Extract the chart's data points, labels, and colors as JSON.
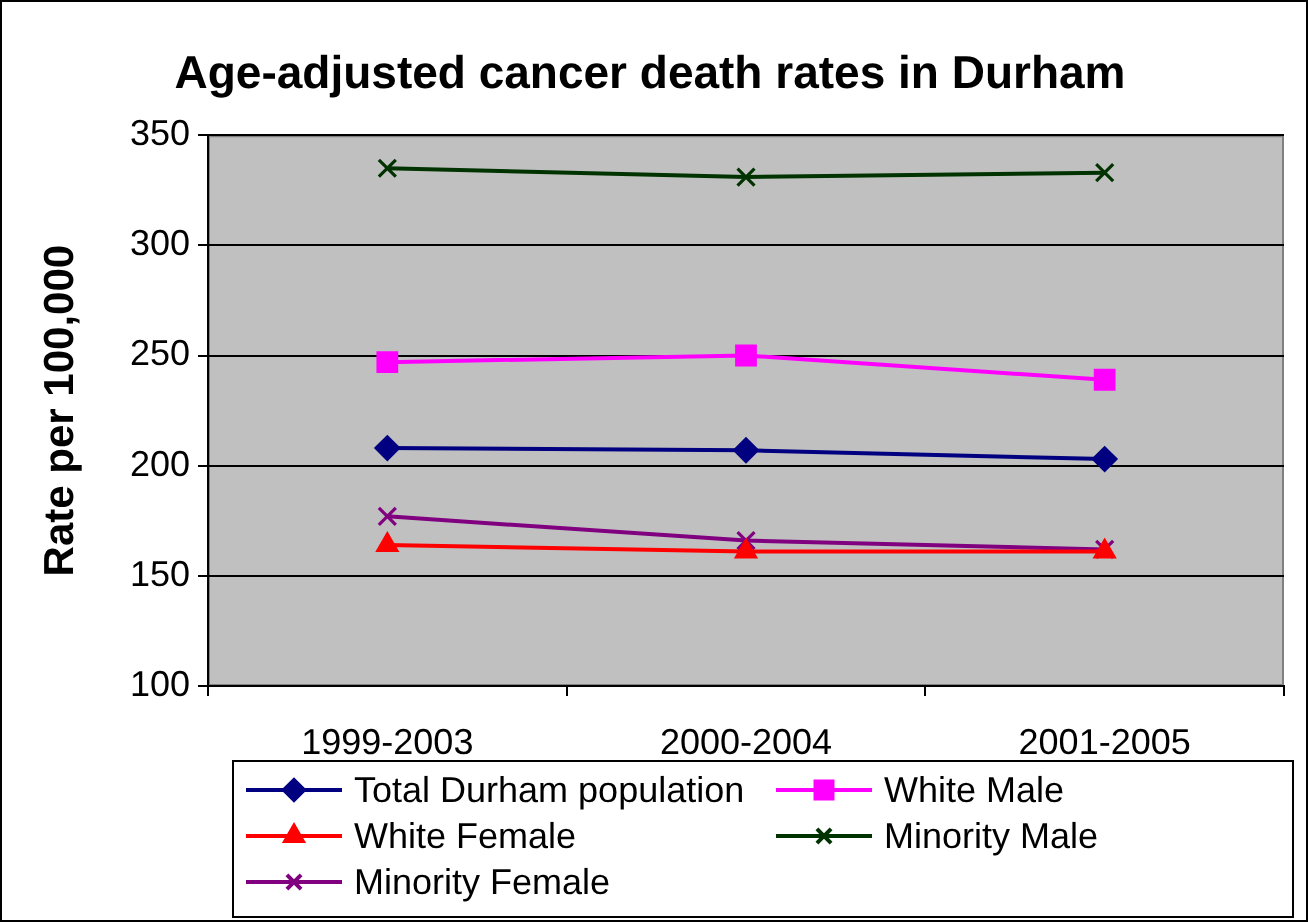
{
  "chart_data": {
    "type": "line",
    "title": "Age-adjusted cancer death rates in Durham",
    "ylabel": "Rate per 100,000",
    "categories": [
      "1999-2003",
      "2000-2004",
      "2001-2005"
    ],
    "series": [
      {
        "name": "Total Durham population",
        "color": "#000080",
        "marker": "diamond",
        "values": [
          208,
          207,
          203
        ]
      },
      {
        "name": "White Male",
        "color": "#ff00ff",
        "marker": "square",
        "values": [
          247,
          250,
          239
        ]
      },
      {
        "name": "White Female",
        "color": "#ff0000",
        "marker": "triangle",
        "values": [
          164,
          161,
          161
        ]
      },
      {
        "name": "Minority Male",
        "color": "#003300",
        "marker": "cross",
        "values": [
          335,
          331,
          333
        ]
      },
      {
        "name": "Minority Female",
        "color": "#800080",
        "marker": "cross",
        "values": [
          177,
          166,
          162
        ]
      }
    ],
    "ylim": [
      100,
      350
    ],
    "yticks": [
      100,
      150,
      200,
      250,
      300,
      350
    ],
    "grid": "y",
    "legend": "bottom",
    "line_style": "solid"
  }
}
